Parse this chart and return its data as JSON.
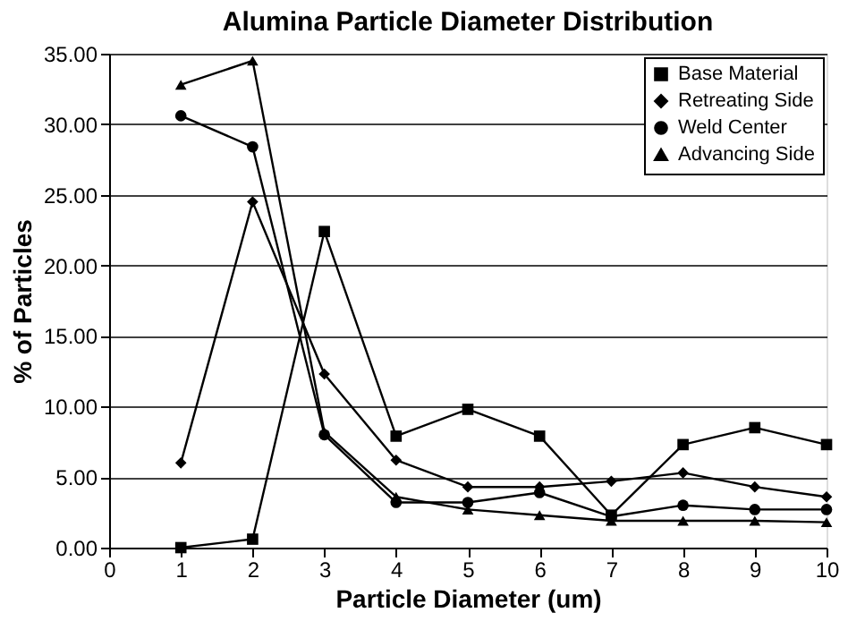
{
  "chart_data": {
    "type": "line",
    "title": "Alumina Particle Diameter Distribution",
    "xlabel": "Particle Diameter (um)",
    "ylabel": "% of Particles",
    "x": [
      1,
      2,
      3,
      4,
      5,
      6,
      7,
      8,
      9,
      10
    ],
    "series": [
      {
        "name": "Base Material",
        "color": "#000000",
        "marker": "square",
        "values": [
          0.0,
          0.6,
          22.4,
          7.9,
          9.8,
          7.9,
          2.3,
          7.3,
          8.5,
          7.3
        ]
      },
      {
        "name": "Retreating Side",
        "color": "#000000",
        "marker": "diamond",
        "values": [
          6.0,
          24.5,
          12.3,
          6.2,
          4.3,
          4.3,
          4.7,
          5.3,
          4.3,
          3.6
        ]
      },
      {
        "name": "Weld Center",
        "color": "#000000",
        "marker": "circle",
        "values": [
          30.6,
          28.4,
          8.0,
          3.2,
          3.2,
          3.9,
          2.2,
          3.0,
          2.7,
          2.7
        ]
      },
      {
        "name": "Advancing Side",
        "color": "#000000",
        "marker": "triangle",
        "values": [
          32.8,
          34.5,
          8.2,
          3.6,
          2.7,
          2.3,
          1.9,
          1.9,
          1.9,
          1.8
        ]
      }
    ],
    "xlim": [
      0,
      10
    ],
    "xticks": [
      0,
      1,
      2,
      3,
      4,
      5,
      6,
      7,
      8,
      9,
      10
    ],
    "ylim": [
      0,
      35
    ],
    "yticks": [
      {
        "value": 0,
        "label": "0.00"
      },
      {
        "value": 5,
        "label": "5.00"
      },
      {
        "value": 10,
        "label": "10.00"
      },
      {
        "value": 15,
        "label": "15.00"
      },
      {
        "value": 20,
        "label": "20.00"
      },
      {
        "value": 25,
        "label": "25.00"
      },
      {
        "value": 30,
        "label": "30.00"
      },
      {
        "value": 35,
        "label": "35.00"
      }
    ],
    "grid": "y",
    "legend": "top right",
    "line_style": "solid"
  }
}
